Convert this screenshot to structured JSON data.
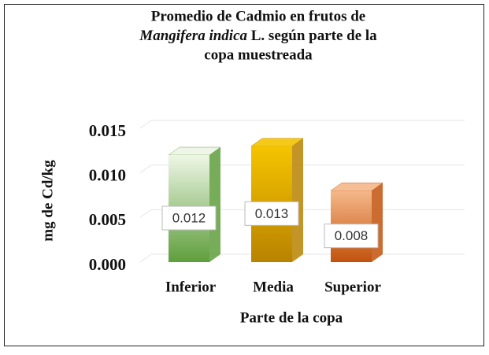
{
  "chart_data": {
    "type": "bar3d",
    "title": {
      "line1": "Promedio de Cadmio en frutos de",
      "line2_italic": "Mangifera indica",
      "line2_rest": " L. según parte de la",
      "line3": "copa muestreada"
    },
    "x_label": "Parte de la copa",
    "y_label": "mg de Cd/kg",
    "categories": [
      "Inferior",
      "Media",
      "Superior"
    ],
    "values": [
      0.012,
      0.013,
      0.008
    ],
    "colors": [
      [
        "#eef6e6",
        "#5f9e3c"
      ],
      [
        "#f5c400",
        "#b88300"
      ],
      [
        "#f6b88a",
        "#c2520d"
      ]
    ],
    "ylim": [
      0,
      0.015
    ],
    "yticks": [
      {
        "value": 0,
        "label": "0.000"
      },
      {
        "value": 0.005,
        "label": "0.005"
      },
      {
        "value": 0.01,
        "label": "0.010"
      },
      {
        "value": 0.015,
        "label": "0.015"
      }
    ],
    "grid": true
  }
}
